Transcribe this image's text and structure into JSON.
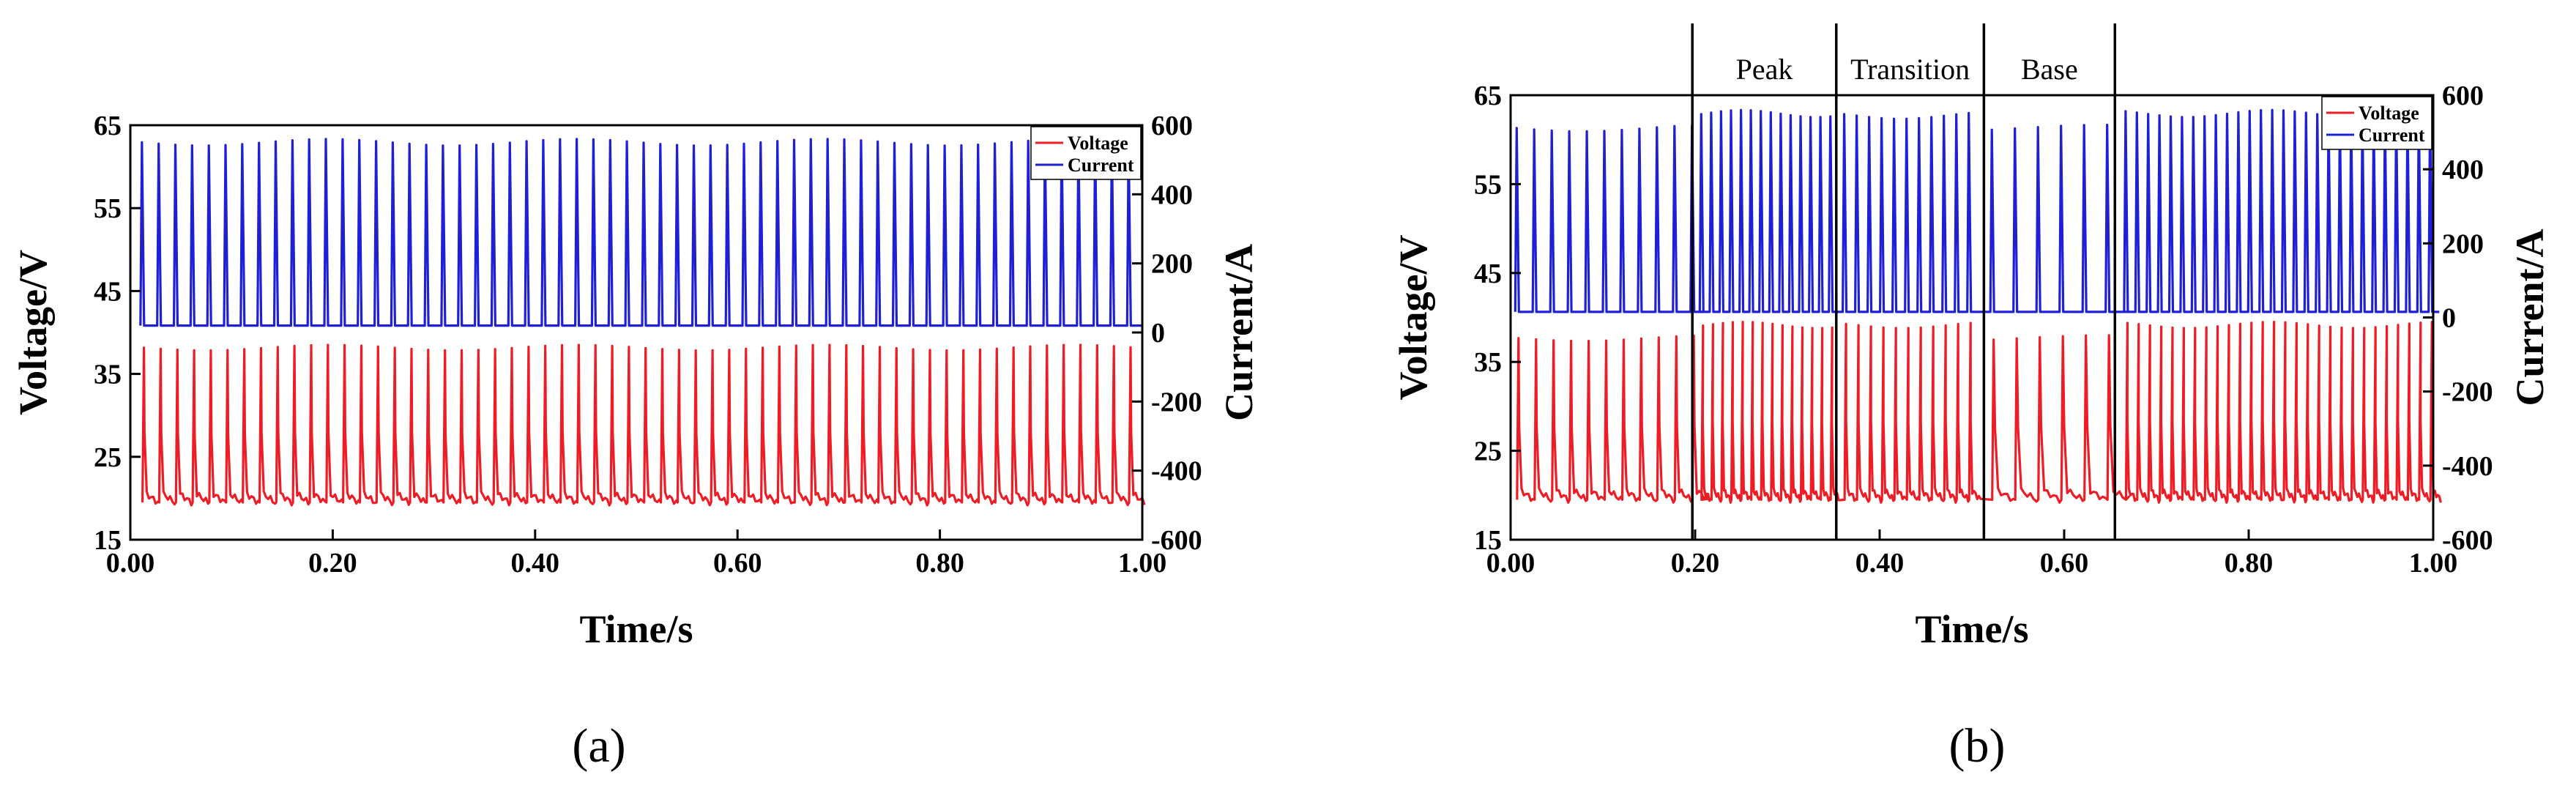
{
  "chart_data": [
    {
      "type": "line",
      "panel_label": "(a)",
      "xlabel": "Time/s",
      "ylabel_left": "Voltage/V",
      "ylabel_right": "Current/A",
      "xlim": [
        0,
        1
      ],
      "ylim_left": [
        15,
        65
      ],
      "ylim_right": [
        -600,
        600
      ],
      "x_ticks": [
        "0.00",
        "0.20",
        "0.40",
        "0.60",
        "0.80",
        "1.00"
      ],
      "x_tick_values": [
        0,
        0.2,
        0.4,
        0.6,
        0.8,
        1.0
      ],
      "y_left_ticks": [
        "15",
        "25",
        "35",
        "45",
        "55",
        "65"
      ],
      "y_left_tick_values": [
        15,
        25,
        35,
        45,
        55,
        65
      ],
      "y_right_ticks": [
        "-600",
        "-400",
        "-200",
        "0",
        "200",
        "400",
        "600"
      ],
      "y_right_tick_values": [
        -600,
        -400,
        -200,
        0,
        200,
        400,
        600
      ],
      "legend": [
        "Voltage",
        "Current"
      ],
      "legend_position": "top-right",
      "grid": false,
      "series": [
        {
          "name": "Voltage",
          "color": "#ee1c25",
          "axis": "left",
          "waveform": "pulsed",
          "pulse_count": 60,
          "base_value": 19.5,
          "peak_value": 38.5,
          "pulse_start": 0.01,
          "pulse_end": 0.985,
          "phase_offset": 0.002
        },
        {
          "name": "Current",
          "color": "#1f1fd6",
          "axis": "right",
          "waveform": "pulsed",
          "pulse_count": 60,
          "base_value": 20,
          "peak_value": 560,
          "pulse_start": 0.01,
          "pulse_end": 0.985,
          "phase_offset": 0
        }
      ]
    },
    {
      "type": "line",
      "panel_label": "(b)",
      "xlabel": "Time/s",
      "ylabel_left": "Voltage/V",
      "ylabel_right": "Current/A",
      "xlim": [
        0,
        1
      ],
      "ylim_left": [
        15,
        65
      ],
      "ylim_right": [
        -600,
        600
      ],
      "x_ticks": [
        "0.00",
        "0.20",
        "0.40",
        "0.60",
        "0.80",
        "1.00"
      ],
      "x_tick_values": [
        0,
        0.2,
        0.4,
        0.6,
        0.8,
        1.0
      ],
      "y_left_ticks": [
        "15",
        "25",
        "35",
        "45",
        "55",
        "65"
      ],
      "y_left_tick_values": [
        15,
        25,
        35,
        45,
        55,
        65
      ],
      "y_right_ticks": [
        "-600",
        "-400",
        "-200",
        "0",
        "200",
        "400",
        "600"
      ],
      "y_right_tick_values": [
        -600,
        -400,
        -200,
        0,
        200,
        400,
        600
      ],
      "legend": [
        "Voltage",
        "Current"
      ],
      "legend_position": "top-right",
      "grid": false,
      "phase_boundaries": [
        0.197,
        0.353,
        0.513,
        0.655
      ],
      "phases": [
        {
          "label": "Peak",
          "x": 0.275
        },
        {
          "label": "Transition",
          "x": 0.433
        },
        {
          "label": "Base",
          "x": 0.584
        }
      ],
      "series": [
        {
          "name": "Voltage",
          "color": "#ee1c25",
          "axis": "left",
          "waveform": "pulsed",
          "base_value": 19.5,
          "peak_value": 38.5,
          "phase_offset": 0.002,
          "segments": [
            {
              "start": 0.005,
              "end": 0.195,
              "count": 11,
              "peak_value": 38.0
            },
            {
              "start": 0.205,
              "end": 0.345,
              "count": 14,
              "peak_value": 39.5
            },
            {
              "start": 0.36,
              "end": 0.495,
              "count": 11,
              "peak_value": 39.5
            },
            {
              "start": 0.52,
              "end": 0.645,
              "count": 6,
              "peak_value": 38.0
            },
            {
              "start": 0.665,
              "end": 0.995,
              "count": 28,
              "peak_value": 39.5
            }
          ]
        },
        {
          "name": "Current",
          "color": "#1f1fd6",
          "axis": "right",
          "waveform": "pulsed",
          "base_value": 15,
          "peak_value": 550,
          "phase_offset": 0,
          "segments": [
            {
              "start": 0.005,
              "end": 0.195,
              "count": 11,
              "peak_value": 520
            },
            {
              "start": 0.205,
              "end": 0.345,
              "count": 14,
              "peak_value": 560
            },
            {
              "start": 0.36,
              "end": 0.495,
              "count": 11,
              "peak_value": 555
            },
            {
              "start": 0.52,
              "end": 0.645,
              "count": 6,
              "peak_value": 520
            },
            {
              "start": 0.665,
              "end": 0.995,
              "count": 28,
              "peak_value": 560
            }
          ]
        }
      ]
    }
  ]
}
